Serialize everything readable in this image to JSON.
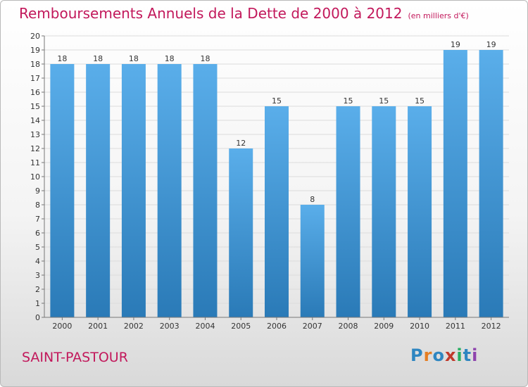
{
  "header": {
    "title": "Remboursements Annuels de la Dette de 2000 à 2012",
    "unit": "(en milliers d'€)"
  },
  "footer": {
    "town": "SAINT-PASTOUR",
    "logo": "Proxiti"
  },
  "colors": {
    "title": "#c2185b",
    "bar_top": "#5aaeea",
    "bar_bottom": "#2a7ab7",
    "logo_letters": [
      "#2e86c1",
      "#e67e22",
      "#2e86c1",
      "#c0392b",
      "#27ae60",
      "#2e86c1",
      "#8e44ad"
    ]
  },
  "chart_data": {
    "type": "bar",
    "categories": [
      "2000",
      "2001",
      "2002",
      "2003",
      "2004",
      "2005",
      "2006",
      "2007",
      "2008",
      "2009",
      "2010",
      "2011",
      "2012"
    ],
    "values": [
      18,
      18,
      18,
      18,
      18,
      12,
      15,
      8,
      15,
      15,
      15,
      19,
      19
    ],
    "ylim": [
      0,
      20
    ],
    "yticks": [
      0,
      1,
      2,
      3,
      4,
      5,
      6,
      7,
      8,
      9,
      10,
      11,
      12,
      13,
      14,
      15,
      16,
      17,
      18,
      19,
      20
    ],
    "grid": true,
    "data_labels": true
  }
}
